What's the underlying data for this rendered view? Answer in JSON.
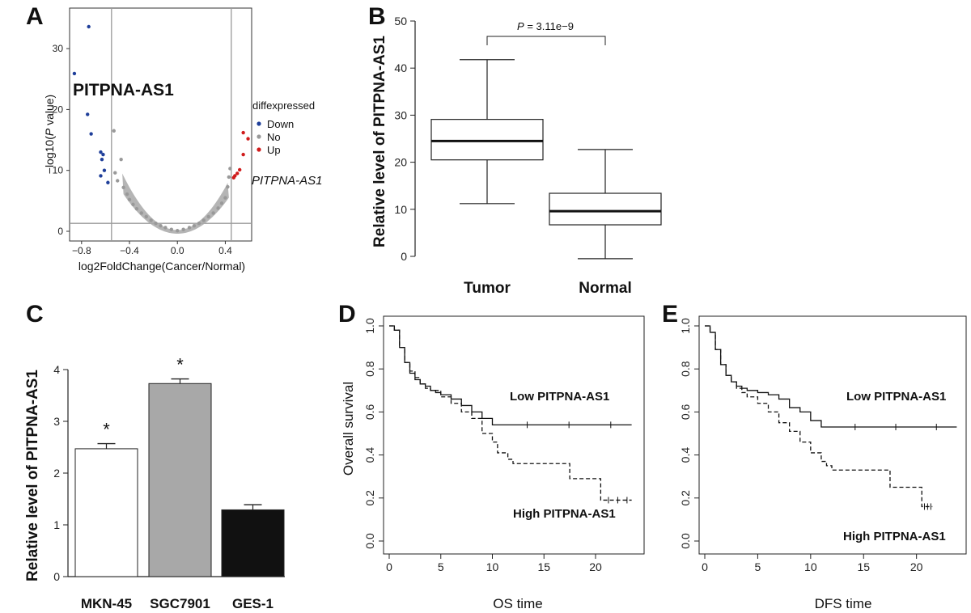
{
  "panels": {
    "A": {
      "letter": "A",
      "gene_label": "PITPNA-AS1",
      "gene_label_side": "PITPNA-AS1",
      "xlabel": "log2FoldChange(Cancer/Normal)",
      "ylabel_pre": "−log10(",
      "ylabel_italic": "P",
      "ylabel_post": " value)",
      "legend": {
        "title": "diffexpressed",
        "items": [
          {
            "label": "Down",
            "color": "#1f3f9a"
          },
          {
            "label": "No",
            "color": "#999999"
          },
          {
            "label": "Up",
            "color": "#d01c1c"
          }
        ]
      },
      "x_ticks": [
        "−0.8",
        "−0.4",
        "0.0",
        "0.4"
      ],
      "y_ticks": [
        "0",
        "10",
        "20",
        "30"
      ]
    },
    "B": {
      "letter": "B",
      "ylabel": "Relative level of PITPNA-AS1",
      "p_italic": "P",
      "p_text": " = 3.11e−9",
      "y_ticks": [
        "0",
        "10",
        "20",
        "30",
        "40",
        "50"
      ]
    },
    "C": {
      "letter": "C",
      "ylabel": "Relative level of PITPNA-AS1",
      "star": "*",
      "y_ticks": [
        "0",
        "1",
        "2",
        "3",
        "4"
      ]
    },
    "D": {
      "letter": "D",
      "ylabel": "Overall survival",
      "xlabel": "OS time",
      "low_label": "Low PITPNA-AS1",
      "high_label": "High PITPNA-AS1",
      "y_ticks": [
        "0.0",
        "0.2",
        "0.4",
        "0.6",
        "0.8",
        "1.0"
      ],
      "x_ticks": [
        "0",
        "5",
        "10",
        "15",
        "20"
      ]
    },
    "E": {
      "letter": "E",
      "xlabel": "DFS  time",
      "low_label": "Low PITPNA-AS1",
      "high_label": "High PITPNA-AS1",
      "y_ticks": [
        "0.0",
        "0.2",
        "0.4",
        "0.6",
        "0.8",
        "1.0"
      ],
      "x_ticks": [
        "0",
        "5",
        "10",
        "15",
        "20"
      ]
    }
  },
  "chart_data": [
    {
      "panel": "A",
      "type": "scatter",
      "xlabel": "log2FoldChange(Cancer/Normal)",
      "ylabel": "−log10(P value)",
      "xlim": [
        -0.9,
        0.62
      ],
      "ylim": [
        -1.5,
        35
      ],
      "thresholds": {
        "x": [
          -0.55,
          0.45
        ],
        "y": 1.3
      },
      "series": [
        {
          "name": "Down",
          "color": "#1f3f9a",
          "points": [
            [
              -0.74,
              33.6
            ],
            [
              -0.86,
              25.9
            ],
            [
              -0.75,
              19.2
            ],
            [
              -0.72,
              16.0
            ],
            [
              -0.64,
              13.0
            ],
            [
              -0.62,
              12.6
            ],
            [
              -0.63,
              11.8
            ],
            [
              -0.61,
              10.0
            ],
            [
              -0.64,
              9.1
            ],
            [
              -0.58,
              8.0
            ]
          ]
        },
        {
          "name": "No",
          "color": "#999999",
          "points": [
            [
              -0.53,
              16.5
            ],
            [
              -0.47,
              11.8
            ],
            [
              -0.52,
              9.6
            ],
            [
              -0.5,
              8.3
            ],
            [
              -0.45,
              7.2
            ],
            [
              -0.42,
              6.1
            ],
            [
              -0.4,
              5.2
            ],
            [
              -0.37,
              4.4
            ],
            [
              -0.34,
              3.7
            ],
            [
              -0.3,
              3.0
            ],
            [
              -0.26,
              2.4
            ],
            [
              -0.22,
              1.8
            ],
            [
              -0.18,
              1.3
            ],
            [
              -0.14,
              0.9
            ],
            [
              -0.1,
              0.6
            ],
            [
              -0.05,
              0.3
            ],
            [
              0.0,
              0.1
            ],
            [
              0.05,
              0.3
            ],
            [
              0.1,
              0.6
            ],
            [
              0.14,
              0.9
            ],
            [
              0.18,
              1.3
            ],
            [
              0.22,
              1.8
            ],
            [
              0.26,
              2.4
            ],
            [
              0.3,
              3.0
            ],
            [
              0.34,
              3.8
            ],
            [
              0.37,
              4.6
            ],
            [
              0.4,
              5.5
            ],
            [
              0.42,
              7.3
            ],
            [
              0.43,
              8.9
            ],
            [
              0.44,
              10.3
            ]
          ]
        },
        {
          "name": "Up",
          "color": "#d01c1c",
          "points": [
            [
              0.55,
              16.2
            ],
            [
              0.59,
              15.2
            ],
            [
              0.55,
              12.6
            ],
            [
              0.52,
              10.1
            ],
            [
              0.5,
              9.5
            ],
            [
              0.48,
              9.1
            ],
            [
              0.47,
              8.8
            ]
          ]
        }
      ],
      "annotations": [
        "PITPNA-AS1",
        "PITPNA-AS1"
      ]
    },
    {
      "panel": "B",
      "type": "box",
      "ylabel": "Relative level of PITPNA-AS1",
      "ylim": [
        0,
        50
      ],
      "categories": [
        "Tumor",
        "Normal"
      ],
      "boxes": [
        {
          "name": "Tumor",
          "whisker_low": 11.2,
          "q1": 20.5,
          "median": 24.5,
          "q3": 29.1,
          "whisker_high": 41.8
        },
        {
          "name": "Normal",
          "whisker_low": -0.5,
          "q1": 6.7,
          "median": 9.6,
          "q3": 13.4,
          "whisker_high": 22.7
        }
      ],
      "annotation": "P = 3.11e−9"
    },
    {
      "panel": "C",
      "type": "bar",
      "ylabel": "Relative level of PITPNA-AS1",
      "ylim": [
        0,
        4
      ],
      "categories": [
        "MKN-45",
        "SGC7901",
        "GES-1"
      ],
      "values": [
        2.47,
        3.73,
        1.29
      ],
      "errors": [
        0.1,
        0.09,
        0.1
      ],
      "colors": [
        "#ffffff",
        "#a8a8a8",
        "#111111"
      ],
      "significance": [
        "*",
        "*",
        ""
      ]
    },
    {
      "panel": "D",
      "type": "line",
      "xlabel": "OS time",
      "ylabel": "Overall survival",
      "xlim": [
        0,
        24
      ],
      "ylim": [
        0,
        1
      ],
      "series": [
        {
          "name": "Low PITPNA-AS1",
          "style": "solid",
          "points": [
            [
              0,
              1.0
            ],
            [
              0.5,
              0.98
            ],
            [
              1,
              0.9
            ],
            [
              1.5,
              0.83
            ],
            [
              2,
              0.78
            ],
            [
              2.5,
              0.75
            ],
            [
              3,
              0.73
            ],
            [
              3.5,
              0.72
            ],
            [
              4,
              0.7
            ],
            [
              4.5,
              0.69
            ],
            [
              5,
              0.68
            ],
            [
              6,
              0.66
            ],
            [
              7,
              0.63
            ],
            [
              8,
              0.6
            ],
            [
              9,
              0.57
            ],
            [
              10,
              0.54
            ],
            [
              23.5,
              0.54
            ]
          ]
        },
        {
          "name": "High PITPNA-AS1",
          "style": "dashed",
          "points": [
            [
              0,
              1.0
            ],
            [
              0.5,
              0.98
            ],
            [
              1,
              0.9
            ],
            [
              1.5,
              0.83
            ],
            [
              2,
              0.79
            ],
            [
              2.5,
              0.76
            ],
            [
              3,
              0.73
            ],
            [
              3.5,
              0.71
            ],
            [
              4,
              0.7
            ],
            [
              5,
              0.67
            ],
            [
              6,
              0.64
            ],
            [
              7,
              0.6
            ],
            [
              8,
              0.57
            ],
            [
              9,
              0.5
            ],
            [
              10,
              0.46
            ],
            [
              10.5,
              0.41
            ],
            [
              11.5,
              0.38
            ],
            [
              12,
              0.36
            ],
            [
              17,
              0.36
            ],
            [
              17.5,
              0.29
            ],
            [
              20,
              0.29
            ],
            [
              20.5,
              0.19
            ],
            [
              23.5,
              0.19
            ]
          ]
        }
      ]
    },
    {
      "panel": "E",
      "type": "line",
      "xlabel": "DFS  time",
      "ylabel": "",
      "xlim": [
        0,
        24
      ],
      "ylim": [
        0,
        1
      ],
      "series": [
        {
          "name": "Low PITPNA-AS1",
          "style": "solid",
          "points": [
            [
              0,
              1.0
            ],
            [
              0.5,
              0.97
            ],
            [
              1,
              0.89
            ],
            [
              1.5,
              0.82
            ],
            [
              2,
              0.77
            ],
            [
              2.5,
              0.74
            ],
            [
              3,
              0.72
            ],
            [
              3.5,
              0.71
            ],
            [
              4,
              0.7
            ],
            [
              5,
              0.69
            ],
            [
              6,
              0.68
            ],
            [
              7,
              0.66
            ],
            [
              8,
              0.62
            ],
            [
              9,
              0.6
            ],
            [
              10,
              0.56
            ],
            [
              11,
              0.53
            ],
            [
              23.8,
              0.53
            ]
          ]
        },
        {
          "name": "High PITPNA-AS1",
          "style": "dashed",
          "points": [
            [
              0,
              1.0
            ],
            [
              0.5,
              0.97
            ],
            [
              1,
              0.89
            ],
            [
              1.5,
              0.82
            ],
            [
              2,
              0.77
            ],
            [
              2.5,
              0.74
            ],
            [
              3,
              0.71
            ],
            [
              3.5,
              0.69
            ],
            [
              4,
              0.67
            ],
            [
              5,
              0.64
            ],
            [
              6,
              0.6
            ],
            [
              7,
              0.55
            ],
            [
              8,
              0.51
            ],
            [
              9,
              0.46
            ],
            [
              10,
              0.41
            ],
            [
              11,
              0.37
            ],
            [
              11.5,
              0.35
            ],
            [
              12,
              0.33
            ],
            [
              17.5,
              0.33
            ],
            [
              17.5,
              0.25
            ],
            [
              20,
              0.25
            ],
            [
              20.5,
              0.16
            ],
            [
              21.5,
              0.16
            ]
          ]
        }
      ]
    }
  ]
}
